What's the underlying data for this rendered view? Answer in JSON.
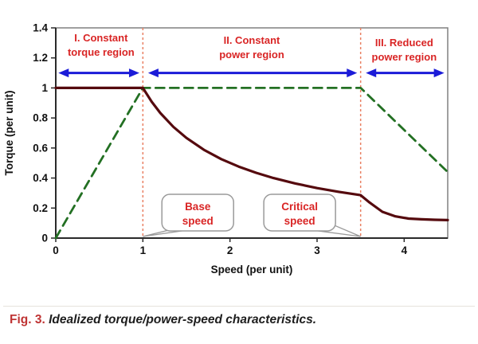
{
  "figure": {
    "caption": {
      "fig_label": "Fig. 3.",
      "text": " Idealized torque/power-speed characteristics."
    }
  },
  "chart_data": {
    "type": "line",
    "title": "",
    "xlabel": "Speed (per unit)",
    "ylabel": "Torque (per unit)",
    "xlim": [
      0,
      4.5
    ],
    "ylim": [
      0,
      1.4
    ],
    "grid": false,
    "legend": "none",
    "xticks": [
      {
        "value": 0,
        "label": "0"
      },
      {
        "value": 1,
        "label": "1"
      },
      {
        "value": 2,
        "label": "2"
      },
      {
        "value": 3,
        "label": "3"
      },
      {
        "value": 4,
        "label": "4"
      }
    ],
    "yticks": [
      {
        "value": 0,
        "label": "0"
      },
      {
        "value": 0.2,
        "label": "0.2"
      },
      {
        "value": 0.4,
        "label": "0.4"
      },
      {
        "value": 0.6,
        "label": "0.6"
      },
      {
        "value": 0.8,
        "label": "0.8"
      },
      {
        "value": 1,
        "label": "1"
      },
      {
        "value": 1.2,
        "label": "1.2"
      },
      {
        "value": 1.4,
        "label": "1.4"
      }
    ],
    "series": [
      {
        "name": "power",
        "style": "dashed",
        "color": "#237023",
        "width": 2.8,
        "dash": "11,7",
        "points": [
          [
            0,
            0
          ],
          [
            1,
            1
          ],
          [
            3.5,
            1
          ],
          [
            4.5,
            0.44
          ]
        ]
      },
      {
        "name": "torque",
        "style": "solid",
        "color": "#550a0e",
        "width": 3.2,
        "dash": "",
        "points": [
          [
            0,
            1
          ],
          [
            1,
            1
          ],
          [
            1.1,
            0.909
          ],
          [
            1.2,
            0.833
          ],
          [
            1.35,
            0.741
          ],
          [
            1.5,
            0.667
          ],
          [
            1.7,
            0.588
          ],
          [
            1.9,
            0.526
          ],
          [
            2.1,
            0.476
          ],
          [
            2.3,
            0.435
          ],
          [
            2.5,
            0.4
          ],
          [
            2.75,
            0.364
          ],
          [
            3,
            0.333
          ],
          [
            3.25,
            0.308
          ],
          [
            3.5,
            0.286
          ],
          [
            3.6,
            0.238
          ],
          [
            3.75,
            0.175
          ],
          [
            3.9,
            0.145
          ],
          [
            4.05,
            0.13
          ],
          [
            4.2,
            0.125
          ],
          [
            4.35,
            0.122
          ],
          [
            4.5,
            0.12
          ]
        ]
      }
    ],
    "boundary_lines": [
      {
        "x": 1,
        "color": "#e98063"
      },
      {
        "x": 3.5,
        "color": "#e98063"
      }
    ],
    "regions": [
      {
        "line1": "I. Constant",
        "line2": "torque region",
        "center_x": 0.52
      },
      {
        "line1": "II. Constant",
        "line2": "power region",
        "center_x": 2.25
      },
      {
        "line1": "III. Reduced",
        "line2": "power region",
        "center_x": 4.0
      }
    ],
    "region_arrows": {
      "y_value": 1.1,
      "color": "#1b1bd8",
      "segments": [
        [
          0.03,
          0.96
        ],
        [
          1.06,
          3.46
        ],
        [
          3.56,
          4.46
        ]
      ]
    },
    "annotations": [
      {
        "line1": "Base",
        "line2": "speed",
        "anchor_x": 1,
        "bubble_center_x": 1.63,
        "bubble_center_y": 0.17
      },
      {
        "line1": "Critical",
        "line2": "speed",
        "anchor_x": 3.5,
        "bubble_center_x": 2.8,
        "bubble_center_y": 0.17
      }
    ],
    "colors": {
      "region_text": "#d92525",
      "annotation_text": "#d92525",
      "axis_text": "#111111",
      "plot_border": "#808080",
      "axis_line": "#2a2a2a",
      "bubble_stroke": "#9a9a9a",
      "bubble_fill": "#ffffff"
    }
  }
}
